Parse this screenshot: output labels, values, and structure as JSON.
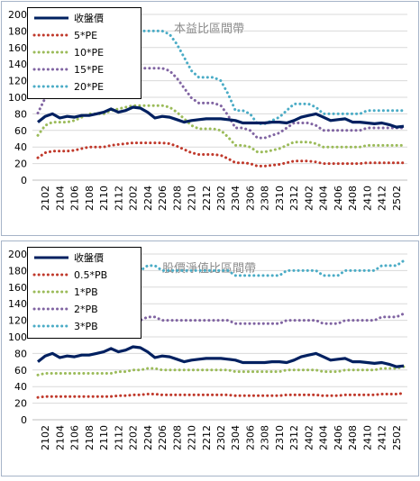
{
  "chart_data": [
    {
      "type": "line",
      "annotation": "本益比區間帶",
      "categories": [
        null,
        "2102",
        null,
        "2104",
        null,
        "2106",
        null,
        "2108",
        null,
        "2110",
        null,
        "2112",
        null,
        "2202",
        null,
        "2204",
        null,
        "2206",
        null,
        "2208",
        null,
        "2210",
        null,
        "2212",
        null,
        "2302",
        null,
        "2304",
        null,
        "2306",
        null,
        "2308",
        null,
        "2310",
        null,
        "2312",
        null,
        "2402",
        null,
        "2404",
        null,
        "2406",
        null,
        "2408",
        null,
        "2410",
        null,
        "2412",
        null,
        "2502",
        null
      ],
      "ylim": [
        0,
        200
      ],
      "yticks": [
        0,
        20,
        40,
        60,
        80,
        100,
        120,
        140,
        160,
        180,
        200
      ],
      "grid": true,
      "series": [
        {
          "name": "收盤價",
          "color": "#002060",
          "style": "solid",
          "values": [
            70,
            77,
            80,
            75,
            77,
            76,
            78,
            78,
            80,
            82,
            86,
            82,
            84,
            88,
            87,
            82,
            75,
            77,
            76,
            73,
            70,
            72,
            73,
            74,
            74,
            74,
            73,
            72,
            69,
            69,
            69,
            69,
            70,
            70,
            69,
            72,
            76,
            78,
            80,
            76,
            72,
            73,
            74,
            70,
            70,
            69,
            68,
            69,
            67,
            64,
            65
          ]
        },
        {
          "name": "5*PE",
          "color": "#c0392b",
          "style": "dotted",
          "values": [
            27,
            33,
            35,
            35,
            35,
            36,
            38,
            40,
            40,
            40,
            42,
            43,
            44,
            45,
            45,
            45,
            45,
            45,
            44,
            41,
            37,
            33,
            31,
            31,
            31,
            30,
            26,
            21,
            21,
            20,
            17,
            17,
            18,
            19,
            21,
            23,
            23,
            23,
            22,
            20,
            20,
            20,
            20,
            20,
            20,
            21,
            21,
            21,
            21,
            21,
            21
          ]
        },
        {
          "name": "10*PE",
          "color": "#9bbb59",
          "style": "dotted",
          "values": [
            54,
            66,
            70,
            70,
            70,
            72,
            76,
            80,
            80,
            80,
            84,
            86,
            88,
            90,
            90,
            90,
            90,
            90,
            88,
            82,
            74,
            66,
            62,
            62,
            62,
            60,
            52,
            42,
            42,
            40,
            34,
            34,
            36,
            38,
            42,
            46,
            46,
            46,
            44,
            40,
            40,
            40,
            40,
            40,
            40,
            42,
            42,
            42,
            42,
            42,
            42
          ]
        },
        {
          "name": "15*PE",
          "color": "#8064a2",
          "style": "dotted",
          "values": [
            81,
            99,
            105,
            105,
            105,
            108,
            114,
            120,
            120,
            120,
            126,
            129,
            132,
            135,
            135,
            135,
            135,
            135,
            132,
            123,
            111,
            99,
            93,
            93,
            93,
            90,
            78,
            63,
            63,
            60,
            51,
            51,
            54,
            57,
            63,
            69,
            69,
            69,
            66,
            60,
            60,
            60,
            60,
            60,
            60,
            63,
            63,
            63,
            63,
            63,
            63
          ]
        },
        {
          "name": "20*PE",
          "color": "#4bacc6",
          "style": "dotted",
          "values": [
            108,
            132,
            140,
            140,
            140,
            144,
            152,
            160,
            160,
            160,
            168,
            172,
            176,
            180,
            180,
            180,
            180,
            180,
            176,
            164,
            148,
            132,
            124,
            124,
            124,
            120,
            104,
            84,
            84,
            80,
            68,
            68,
            72,
            76,
            84,
            92,
            92,
            92,
            88,
            80,
            80,
            80,
            80,
            80,
            80,
            84,
            84,
            84,
            84,
            84,
            84
          ]
        }
      ]
    },
    {
      "type": "line",
      "annotation": "股價淨值比區間帶",
      "categories": [
        null,
        "2102",
        null,
        "2104",
        null,
        "2106",
        null,
        "2108",
        null,
        "2110",
        null,
        "2112",
        null,
        "2202",
        null,
        "2204",
        null,
        "2206",
        null,
        "2208",
        null,
        "2210",
        null,
        "2212",
        null,
        "2302",
        null,
        "2304",
        null,
        "2306",
        null,
        "2308",
        null,
        "2310",
        null,
        "2312",
        null,
        "2402",
        null,
        "2404",
        null,
        "2406",
        null,
        "2408",
        null,
        "2410",
        null,
        "2412",
        null,
        "2502",
        null
      ],
      "ylim": [
        0,
        200
      ],
      "yticks": [
        0,
        20,
        40,
        60,
        80,
        100,
        120,
        140,
        160,
        180,
        200
      ],
      "grid": true,
      "series": [
        {
          "name": "收盤價",
          "color": "#002060",
          "style": "solid",
          "values": [
            70,
            77,
            80,
            75,
            77,
            76,
            78,
            78,
            80,
            82,
            86,
            82,
            84,
            88,
            87,
            82,
            75,
            77,
            76,
            73,
            70,
            72,
            73,
            74,
            74,
            74,
            73,
            72,
            69,
            69,
            69,
            69,
            70,
            70,
            69,
            72,
            76,
            78,
            80,
            76,
            72,
            73,
            74,
            70,
            70,
            69,
            68,
            69,
            67,
            64,
            65
          ]
        },
        {
          "name": "0.5*PB",
          "color": "#c0392b",
          "style": "dotted",
          "values": [
            27,
            28,
            28,
            28,
            28,
            28,
            28,
            28,
            28,
            28,
            28,
            29,
            29,
            30,
            30,
            31,
            31,
            30,
            30,
            30,
            30,
            30,
            30,
            30,
            30,
            30,
            30,
            29,
            29,
            29,
            29,
            29,
            29,
            29,
            30,
            30,
            30,
            30,
            30,
            29,
            29,
            29,
            30,
            30,
            30,
            30,
            30,
            31,
            31,
            31,
            32
          ]
        },
        {
          "name": "1*PB",
          "color": "#9bbb59",
          "style": "dotted",
          "values": [
            54,
            56,
            56,
            56,
            56,
            56,
            56,
            56,
            56,
            56,
            56,
            58,
            58,
            60,
            60,
            62,
            62,
            60,
            60,
            60,
            60,
            60,
            60,
            60,
            60,
            60,
            60,
            58,
            58,
            58,
            58,
            58,
            58,
            58,
            60,
            60,
            60,
            60,
            60,
            58,
            58,
            58,
            60,
            60,
            60,
            60,
            60,
            62,
            62,
            62,
            64
          ]
        },
        {
          "name": "2*PB",
          "color": "#8064a2",
          "style": "dotted",
          "values": [
            108,
            112,
            112,
            112,
            112,
            112,
            112,
            112,
            112,
            112,
            112,
            116,
            116,
            120,
            120,
            124,
            124,
            120,
            120,
            120,
            120,
            120,
            120,
            120,
            120,
            120,
            120,
            116,
            116,
            116,
            116,
            116,
            116,
            116,
            120,
            120,
            120,
            120,
            120,
            116,
            116,
            116,
            120,
            120,
            120,
            120,
            120,
            124,
            124,
            124,
            128
          ]
        },
        {
          "name": "3*PB",
          "color": "#4bacc6",
          "style": "dotted",
          "values": [
            162,
            168,
            168,
            168,
            168,
            168,
            168,
            168,
            168,
            168,
            168,
            174,
            174,
            180,
            180,
            186,
            186,
            180,
            180,
            180,
            180,
            180,
            180,
            180,
            180,
            180,
            180,
            174,
            174,
            174,
            174,
            174,
            174,
            174,
            180,
            180,
            180,
            180,
            180,
            174,
            174,
            174,
            180,
            180,
            180,
            180,
            180,
            186,
            186,
            186,
            192
          ]
        }
      ]
    }
  ]
}
